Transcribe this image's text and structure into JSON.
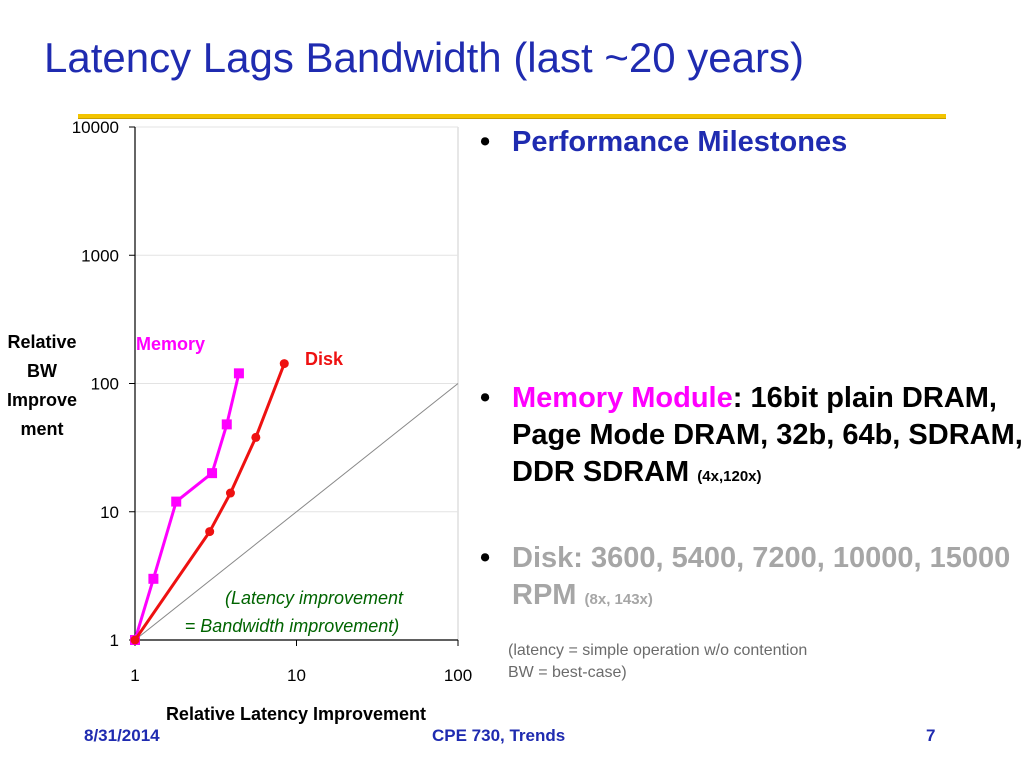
{
  "slide": {
    "title": "Latency Lags Bandwidth (last ~20 years)",
    "footer_date": "8/31/2014",
    "footer_course": "CPE 730, Trends",
    "page_number": "7"
  },
  "bullets": {
    "b1": "Performance Milestones",
    "b2_highlight": "Memory Module",
    "b2_rest": ": 16bit plain DRAM, Page Mode DRAM, 32b, 64b, SDRAM,",
    "b2_line4": "DDR SDRAM",
    "b2_small": "(4x,120x)",
    "b3": "Disk: 3600, 5400, 7200, 10000, 15000 RPM",
    "b3_small": "(8x, 143x)",
    "note_line1": "(latency = simple operation w/o contention",
    "note_line2": "BW = best-case)"
  },
  "chart_data": {
    "type": "scatter",
    "xlabel": "Relative Latency Improvement",
    "ylabel_lines": [
      "Relative",
      "BW",
      "Improve",
      "ment"
    ],
    "x_scale": "log",
    "y_scale": "log",
    "xlim": [
      1,
      100
    ],
    "ylim": [
      1,
      10000
    ],
    "x_ticks": [
      "1",
      "10",
      "100"
    ],
    "y_ticks": [
      "1",
      "10",
      "100",
      "1000",
      "10000"
    ],
    "grid": "horizontal",
    "series": [
      {
        "name": "Memory",
        "color": "#ff00ff",
        "marker": "square",
        "points": [
          [
            1,
            1
          ],
          [
            1.3,
            3
          ],
          [
            1.8,
            12
          ],
          [
            3,
            20
          ],
          [
            3.7,
            48
          ],
          [
            4.4,
            120
          ]
        ]
      },
      {
        "name": "Disk",
        "color": "#ee1111",
        "marker": "circle",
        "points": [
          [
            1,
            1
          ],
          [
            2.9,
            7
          ],
          [
            3.9,
            14
          ],
          [
            5.6,
            38
          ],
          [
            8.4,
            143
          ]
        ]
      }
    ],
    "reference_line": {
      "color": "#888888",
      "points": [
        [
          1,
          1
        ],
        [
          100,
          100
        ]
      ]
    },
    "annotation_line1": "(Latency improvement",
    "annotation_line2": "= Bandwidth improvement)",
    "annotation_color": "#006400"
  }
}
